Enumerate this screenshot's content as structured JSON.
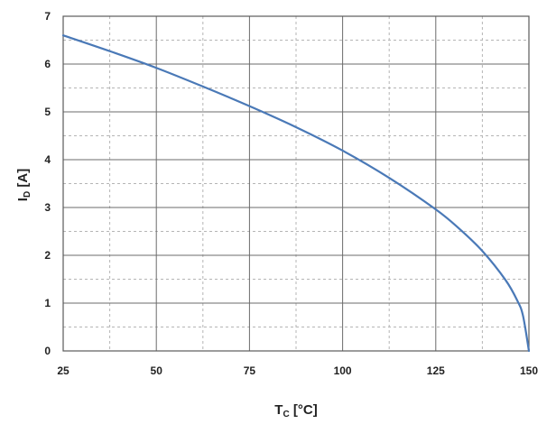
{
  "chart_data": {
    "type": "line",
    "title": "",
    "xlabel": "T",
    "xlabel_sub": "C",
    "xlabel_unit": " [°C]",
    "ylabel": "I",
    "ylabel_sub": "D",
    "ylabel_unit": " [A]",
    "xlim": [
      25,
      150
    ],
    "ylim": [
      0,
      7
    ],
    "xticks": [
      25,
      50,
      75,
      100,
      125,
      150
    ],
    "yticks": [
      0,
      1,
      2,
      3,
      4,
      5,
      6,
      7
    ],
    "grid": true,
    "legend": "none",
    "series": [
      {
        "color": "#4a79b7",
        "x": [
          25,
          37.5,
          50,
          62.5,
          75,
          87.5,
          100,
          112.5,
          125,
          131.25,
          137.5,
          143.75,
          146.9,
          148.4,
          150
        ],
        "y": [
          6.6,
          6.27,
          5.92,
          5.53,
          5.12,
          4.68,
          4.19,
          3.62,
          2.96,
          2.56,
          2.09,
          1.48,
          1.05,
          0.74,
          0
        ]
      }
    ]
  }
}
